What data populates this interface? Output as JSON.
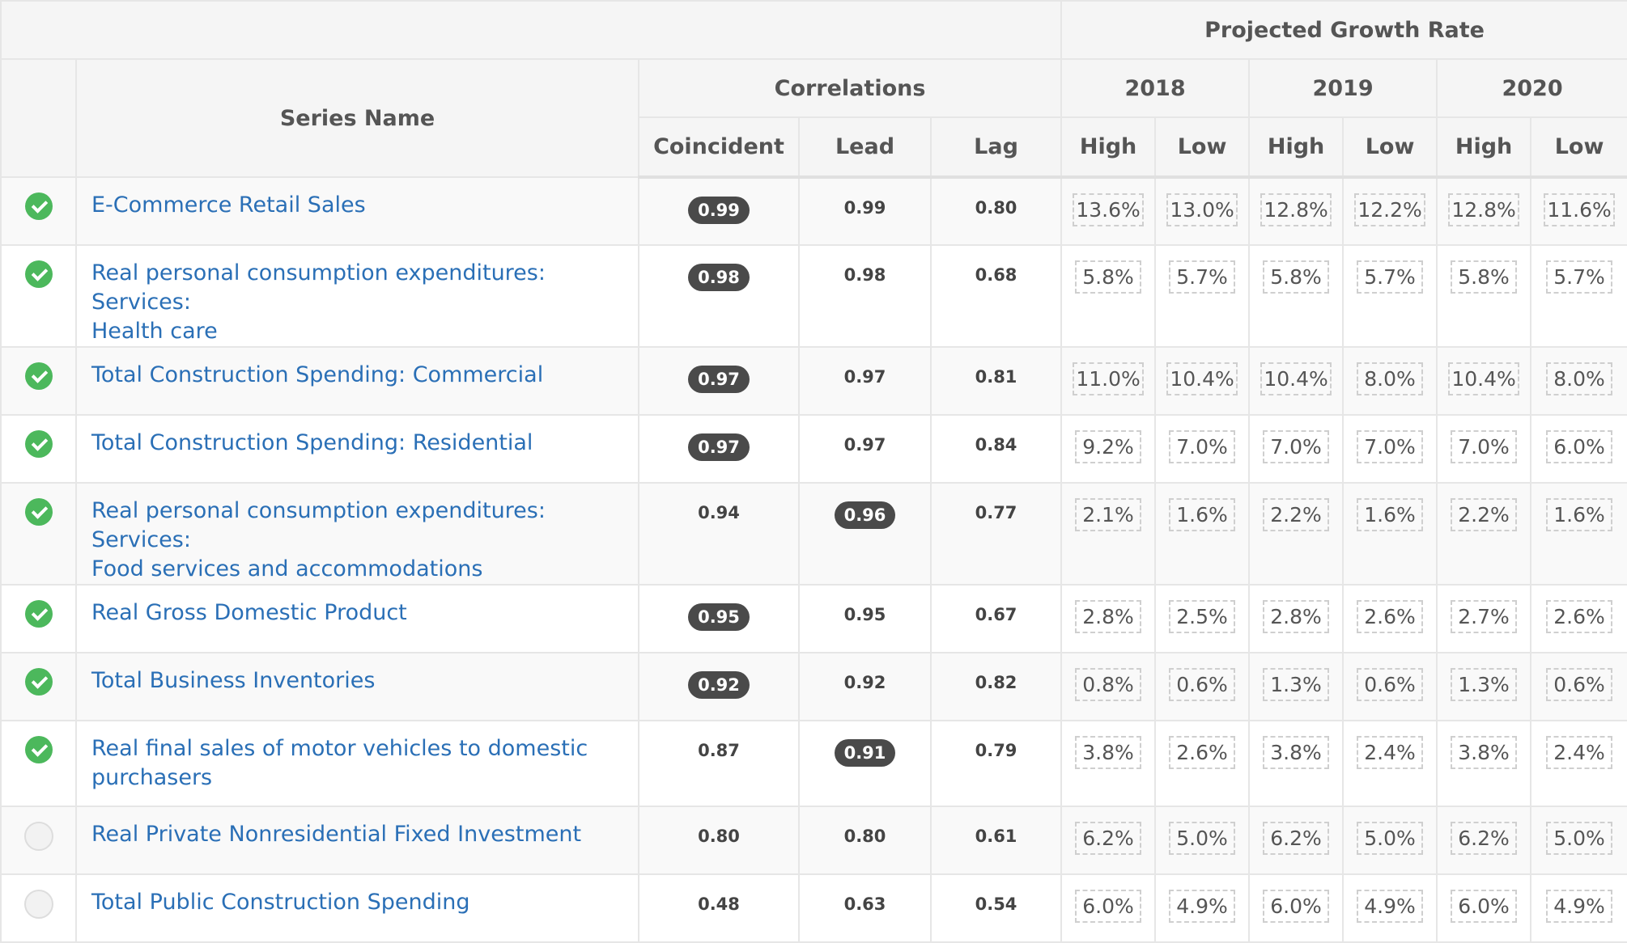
{
  "header": {
    "projected_growth_rate": "Projected Growth Rate",
    "series_name": "Series Name",
    "correlations": "Correlations",
    "years": [
      "2018",
      "2019",
      "2020"
    ],
    "coincident": "Coincident",
    "lead": "Lead",
    "lag": "Lag",
    "high": "High",
    "low": "Low"
  },
  "rows": [
    {
      "checked": true,
      "name": [
        "E-Commerce Retail Sales"
      ],
      "coincident": "0.99",
      "lead": "0.99",
      "lag": "0.80",
      "highlight": "coincident",
      "rates": [
        "13.6%",
        "13.0%",
        "12.8%",
        "12.2%",
        "12.8%",
        "11.6%"
      ]
    },
    {
      "checked": true,
      "name": [
        "Real personal consumption expenditures: Services:",
        "Health care"
      ],
      "coincident": "0.98",
      "lead": "0.98",
      "lag": "0.68",
      "highlight": "coincident",
      "rates": [
        "5.8%",
        "5.7%",
        "5.8%",
        "5.7%",
        "5.8%",
        "5.7%"
      ]
    },
    {
      "checked": true,
      "name": [
        "Total Construction Spending: Commercial"
      ],
      "coincident": "0.97",
      "lead": "0.97",
      "lag": "0.81",
      "highlight": "coincident",
      "rates": [
        "11.0%",
        "10.4%",
        "10.4%",
        "8.0%",
        "10.4%",
        "8.0%"
      ]
    },
    {
      "checked": true,
      "name": [
        "Total Construction Spending: Residential"
      ],
      "coincident": "0.97",
      "lead": "0.97",
      "lag": "0.84",
      "highlight": "coincident",
      "rates": [
        "9.2%",
        "7.0%",
        "7.0%",
        "7.0%",
        "7.0%",
        "6.0%"
      ]
    },
    {
      "checked": true,
      "name": [
        "Real personal consumption expenditures: Services:",
        "Food services and accommodations"
      ],
      "coincident": "0.94",
      "lead": "0.96",
      "lag": "0.77",
      "highlight": "lead",
      "rates": [
        "2.1%",
        "1.6%",
        "2.2%",
        "1.6%",
        "2.2%",
        "1.6%"
      ]
    },
    {
      "checked": true,
      "name": [
        "Real Gross Domestic Product"
      ],
      "coincident": "0.95",
      "lead": "0.95",
      "lag": "0.67",
      "highlight": "coincident",
      "rates": [
        "2.8%",
        "2.5%",
        "2.8%",
        "2.6%",
        "2.7%",
        "2.6%"
      ]
    },
    {
      "checked": true,
      "name": [
        "Total Business Inventories"
      ],
      "coincident": "0.92",
      "lead": "0.92",
      "lag": "0.82",
      "highlight": "coincident",
      "rates": [
        "0.8%",
        "0.6%",
        "1.3%",
        "0.6%",
        "1.3%",
        "0.6%"
      ]
    },
    {
      "checked": true,
      "name": [
        "Real final sales of motor vehicles to domestic",
        "purchasers"
      ],
      "coincident": "0.87",
      "lead": "0.91",
      "lag": "0.79",
      "highlight": "lead",
      "rates": [
        "3.8%",
        "2.6%",
        "3.8%",
        "2.4%",
        "3.8%",
        "2.4%"
      ]
    },
    {
      "checked": false,
      "name": [
        "Real Private Nonresidential Fixed Investment"
      ],
      "coincident": "0.80",
      "lead": "0.80",
      "lag": "0.61",
      "highlight": "",
      "rates": [
        "6.2%",
        "5.0%",
        "6.2%",
        "5.0%",
        "6.2%",
        "5.0%"
      ]
    },
    {
      "checked": false,
      "name": [
        "Total Public Construction Spending"
      ],
      "coincident": "0.48",
      "lead": "0.63",
      "lag": "0.54",
      "highlight": "",
      "rates": [
        "6.0%",
        "4.9%",
        "6.0%",
        "4.9%",
        "6.0%",
        "4.9%"
      ]
    }
  ]
}
